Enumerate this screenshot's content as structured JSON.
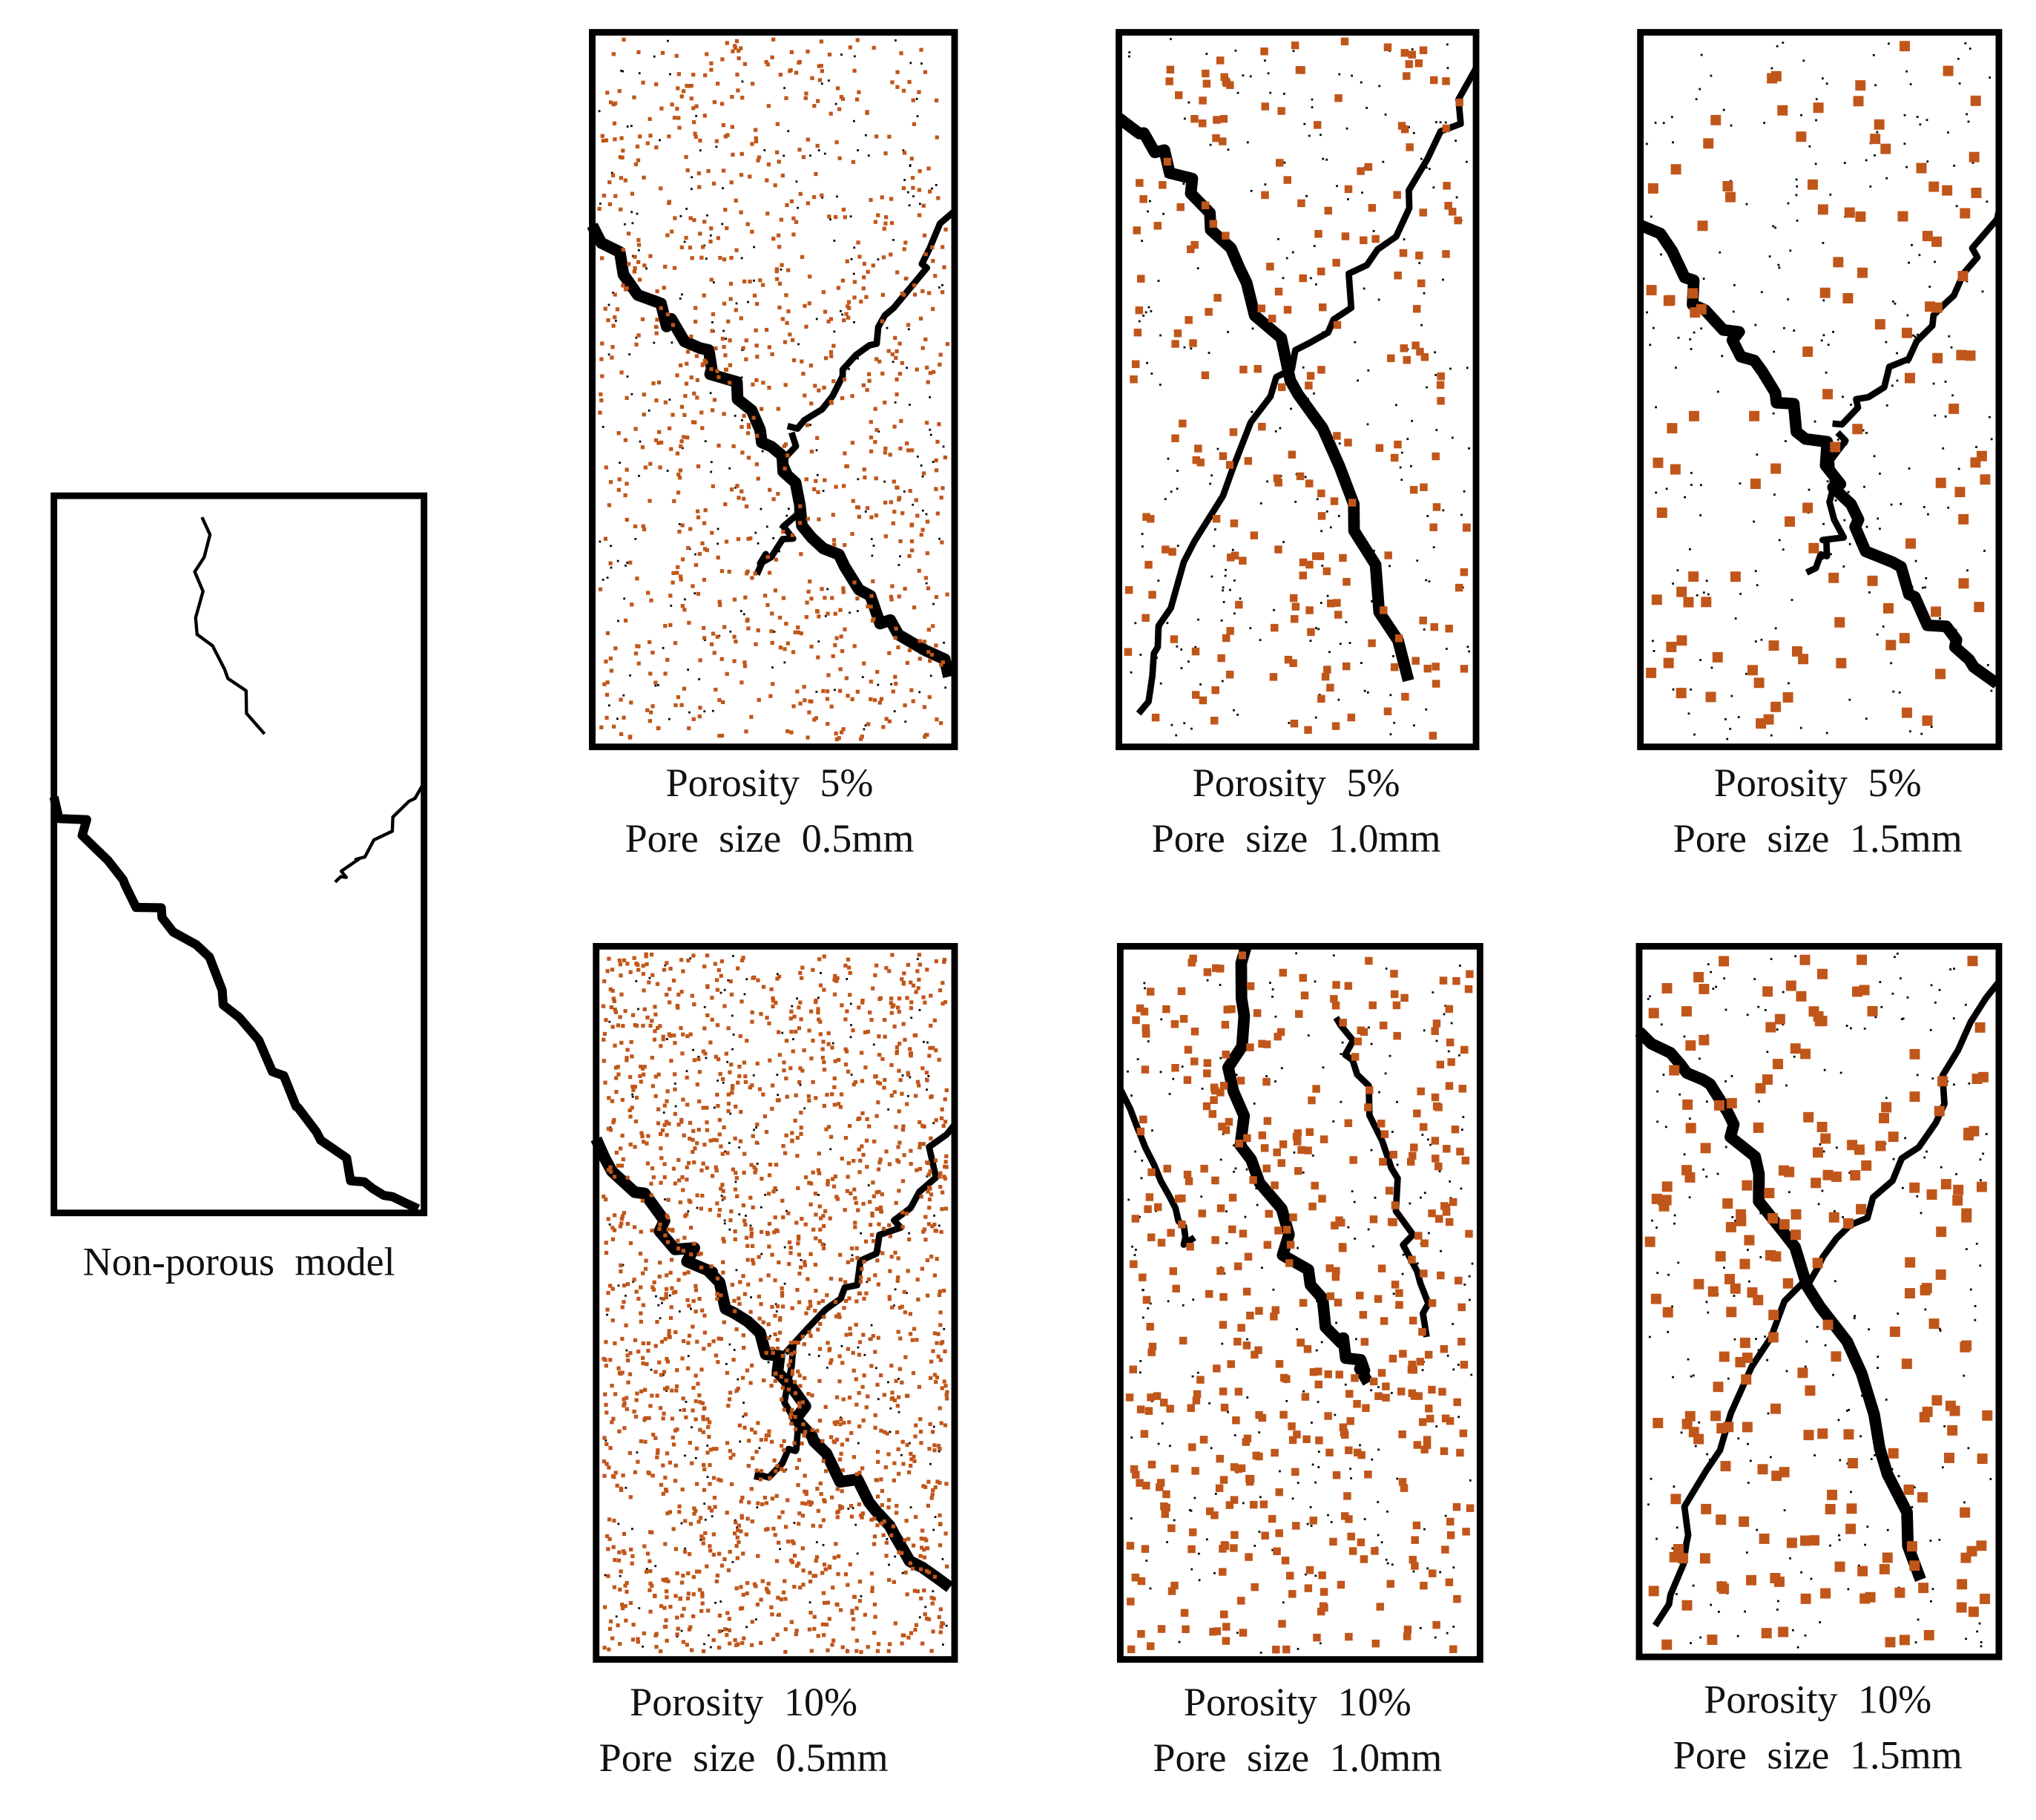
{
  "non_porous": {
    "label": "Non-porous model"
  },
  "panels": [
    {
      "porosity": "Porosity 5%",
      "pore_size": "Pore size 0.5mm"
    },
    {
      "porosity": "Porosity 5%",
      "pore_size": "Pore size 1.0mm"
    },
    {
      "porosity": "Porosity 5%",
      "pore_size": "Pore size 1.5mm"
    },
    {
      "porosity": "Porosity 10%",
      "pore_size": "Pore size 0.5mm"
    },
    {
      "porosity": "Porosity 10%",
      "pore_size": "Pore size 1.0mm"
    },
    {
      "porosity": "Porosity 10%",
      "pore_size": "Pore size 1.5mm"
    }
  ]
}
